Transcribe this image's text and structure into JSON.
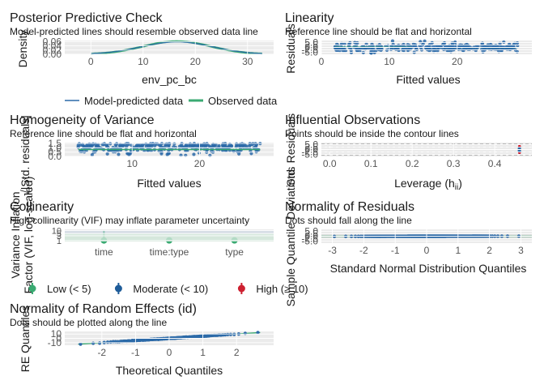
{
  "colors": {
    "green": "#3aaa72",
    "blue": "#2c6aa8",
    "dark_blue": "#1f5c99",
    "red": "#cd2030",
    "panel_bg": "#ebebeb",
    "grid": "#ffffff",
    "text": "#1a1a1a",
    "tick": "#555555",
    "contour": "#9a9a9a"
  },
  "chart_data": [
    {
      "id": "ppc",
      "type": "line",
      "title": "Posterior Predictive Check",
      "subtitle": "Model-predicted lines should resemble observed data line",
      "xlabel": "env_pc_bc",
      "ylabel": "Density",
      "xlim": [
        -5,
        35
      ],
      "ylim": [
        0,
        0.065
      ],
      "x_ticks": [
        0,
        10,
        20,
        30
      ],
      "y_ticks": [
        0.0,
        0.02,
        0.04,
        0.06
      ],
      "y_tick_labels": [
        "0.00",
        "0.02",
        "0.04",
        "0.06"
      ],
      "series": [
        {
          "name": "Model-predicted data",
          "color": "blue",
          "mean": 16.5,
          "sd": 6.8,
          "x_range": [
            0,
            33
          ]
        },
        {
          "name": "Observed data",
          "color": "green",
          "mean": 16.5,
          "sd": 6.5,
          "x_range": [
            0,
            33
          ]
        }
      ],
      "legend": [
        "Model-predicted data",
        "Observed data"
      ]
    },
    {
      "id": "linearity",
      "type": "scatter",
      "title": "Linearity",
      "subtitle": "Reference line should be flat and horizontal",
      "xlabel": "Fitted values",
      "ylabel": "Residuals",
      "xlim": [
        0,
        31
      ],
      "ylim": [
        -7,
        7
      ],
      "x_ticks": [
        0,
        10,
        20
      ],
      "y_ticks": [
        -5.0,
        -2.5,
        0.0,
        2.5,
        5.0
      ],
      "y_tick_labels": [
        "-5.0",
        "-2.5",
        "0.0",
        "2.5",
        "5.0"
      ],
      "points": {
        "n": 320,
        "x_range": [
          2,
          29
        ],
        "y_spread": 4
      },
      "reference_line": 0,
      "smooth_color": "green"
    },
    {
      "id": "homogeneity",
      "type": "scatter",
      "title": "Homogeneity of Variance",
      "subtitle": "Reference line should be flat and horizontal",
      "xlabel": "Fitted values",
      "ylabel": "√|Std. residuals|",
      "xlim": [
        0,
        31
      ],
      "ylim": [
        0,
        1.6
      ],
      "x_ticks": [
        10,
        20
      ],
      "y_ticks": [
        0.0,
        0.5,
        1.0,
        1.5
      ],
      "y_tick_labels": [
        "0.0",
        "0.5",
        "1.0",
        "1.5"
      ],
      "points": {
        "n": 320,
        "x_range": [
          2,
          29
        ],
        "y_range": [
          0.05,
          1.5
        ]
      },
      "smooth_level": 0.8,
      "smooth_color": "green"
    },
    {
      "id": "influential",
      "type": "scatter",
      "title": "Influential Observations",
      "subtitle": "Points should be inside the contour lines",
      "xlabel": "Leverage (hii)",
      "xlabel_main": "Leverage (h",
      "xlabel_sub": "ii",
      "xlabel_close": ")",
      "ylabel": "Std. Residuals",
      "xlim": [
        -0.02,
        0.49
      ],
      "ylim": [
        -7,
        7
      ],
      "x_ticks": [
        0.0,
        0.1,
        0.2,
        0.3,
        0.4
      ],
      "x_tick_labels": [
        "0.0",
        "0.1",
        "0.2",
        "0.3",
        "0.4"
      ],
      "y_ticks": [
        -5.0,
        -2.5,
        0.0,
        2.5,
        5.0
      ],
      "y_tick_labels": [
        "-5.0",
        "-2.5",
        "0.0",
        "2.5",
        "5.0"
      ],
      "leverage": 0.46,
      "points": {
        "n": 40,
        "y_spread": 3.5
      },
      "contour_levels": [
        -5.5,
        -2.5,
        2.5,
        5.5
      ],
      "highlight_color": "red"
    },
    {
      "id": "collinearity",
      "type": "scatter",
      "title": "Collinearity",
      "subtitle": "High collinearity (VIF) may inflate parameter uncertainty",
      "xlabel": "",
      "ylabel": "Variance Inflation\nFactor (VIF, log-scaled)",
      "categories": [
        "time",
        "time:type",
        "type"
      ],
      "y_tick_labels": [
        "10",
        "5",
        "3",
        "1"
      ],
      "y_ticks": [
        10,
        5,
        3,
        1
      ],
      "ylim_log": [
        0.8,
        13
      ],
      "values": [
        1.02,
        1.03,
        1.03
      ],
      "colors": [
        "green",
        "green",
        "green"
      ],
      "legend": [
        {
          "label": "Low (< 5)",
          "color": "green"
        },
        {
          "label": "Moderate (< 10)",
          "color": "dark_blue"
        },
        {
          "label": "High (≥ 10)",
          "color": "red"
        }
      ]
    },
    {
      "id": "normality",
      "type": "scatter",
      "title": "Normality of Residuals",
      "subtitle": "Dots should fall along the line",
      "xlabel": "Standard Normal Distribution Quantiles",
      "ylabel": "Sample Quantile Deviations",
      "xlim": [
        -3.35,
        3.35
      ],
      "ylim": [
        -7,
        7
      ],
      "x_ticks": [
        -3,
        -2,
        -1,
        0,
        1,
        2,
        3
      ],
      "y_ticks": [
        -5.0,
        -2.5,
        0.0,
        2.5,
        5.0
      ],
      "y_tick_labels": [
        "-5.0",
        "-2.5",
        "0.0",
        "2.5",
        "5.0"
      ],
      "points": {
        "n": 300,
        "x_range": [
          -3,
          3
        ]
      }
    },
    {
      "id": "random_effects",
      "type": "scatter",
      "title": "Normality of Random Effects (id)",
      "subtitle": "Dots should be plotted along the line",
      "xlabel": "Theoretical Quantiles",
      "ylabel": "RE Quantiles",
      "xlim": [
        -3.1,
        3.1
      ],
      "ylim": [
        -16,
        16
      ],
      "x_ticks": [
        -2,
        -1,
        0,
        1,
        2
      ],
      "y_ticks": [
        -10,
        0,
        10
      ],
      "y_tick_labels": [
        "-10",
        "0",
        "10"
      ],
      "points": {
        "n": 150,
        "x_range": [
          -2.7,
          2.7
        ],
        "slope": 5
      }
    }
  ]
}
